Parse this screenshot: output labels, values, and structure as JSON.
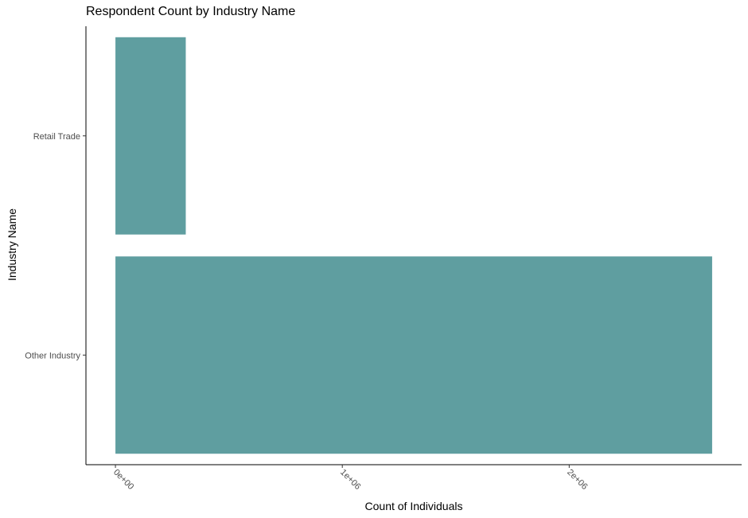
{
  "chart_data": {
    "type": "bar",
    "orientation": "horizontal",
    "title": "Respondent Count by Industry Name",
    "xlabel": "Count of Individuals",
    "ylabel": "Industry Name",
    "categories": [
      "Other Industry",
      "Retail Trade"
    ],
    "values": [
      2630000,
      310000
    ],
    "x_ticks": [
      {
        "value": 0,
        "label": "0e+00"
      },
      {
        "value": 1000000,
        "label": "1e+06"
      },
      {
        "value": 2000000,
        "label": "2e+06"
      }
    ],
    "xlim": [
      -130000,
      2760000
    ],
    "bar_color": "#5f9ea0",
    "grid": false,
    "legend": "none"
  }
}
